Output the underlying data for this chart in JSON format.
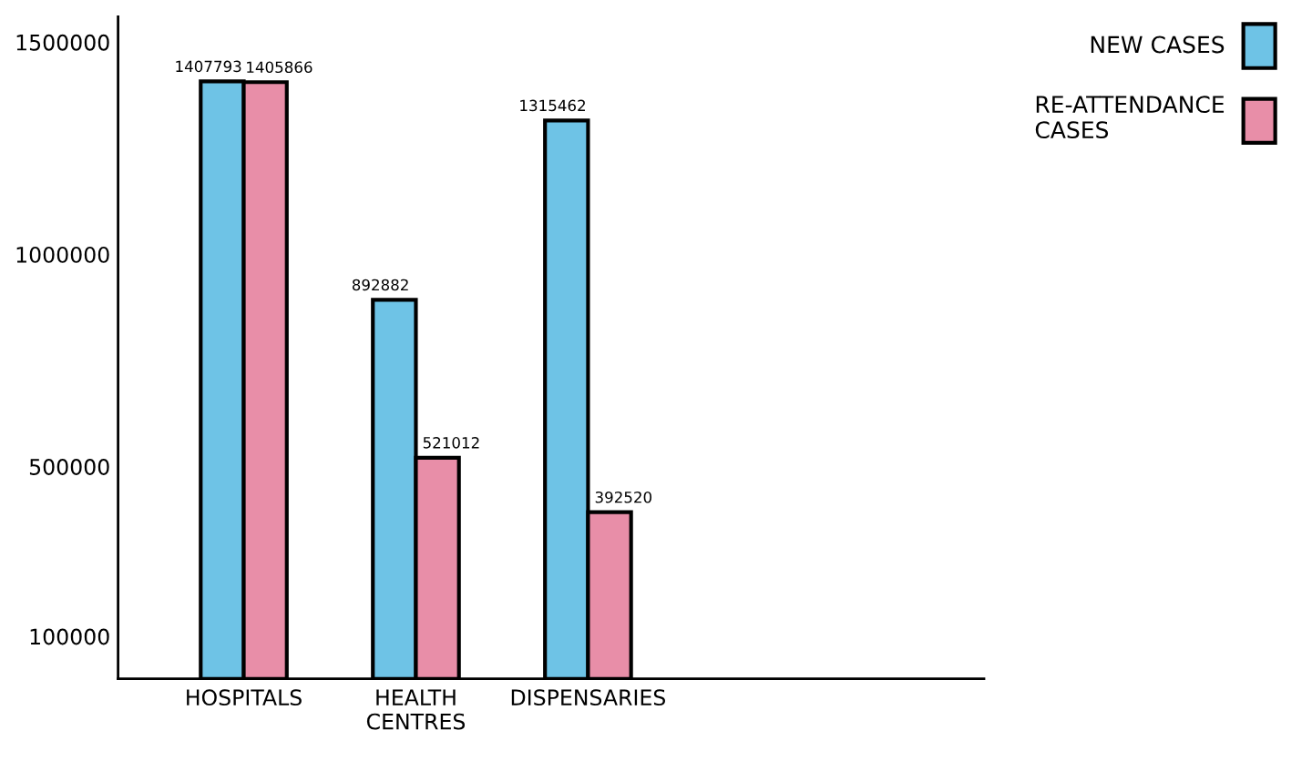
{
  "chart_data": {
    "type": "bar",
    "categories": [
      "HOSPITALS",
      "HEALTH\nCENTRES",
      "DISPENSARIES"
    ],
    "series": [
      {
        "name": "NEW CASES",
        "color": "#6ec3e6",
        "values": [
          1407793,
          892882,
          1315462
        ]
      },
      {
        "name": "RE-ATTENDANCE\nCASES",
        "color": "#e88ea8",
        "values": [
          1405866,
          521012,
          392520
        ]
      }
    ],
    "ylim": [
      0,
      1560000
    ],
    "yticks": [
      100000,
      500000,
      1000000,
      1500000
    ],
    "data_labels": true,
    "legend": "top right",
    "grid": false
  }
}
